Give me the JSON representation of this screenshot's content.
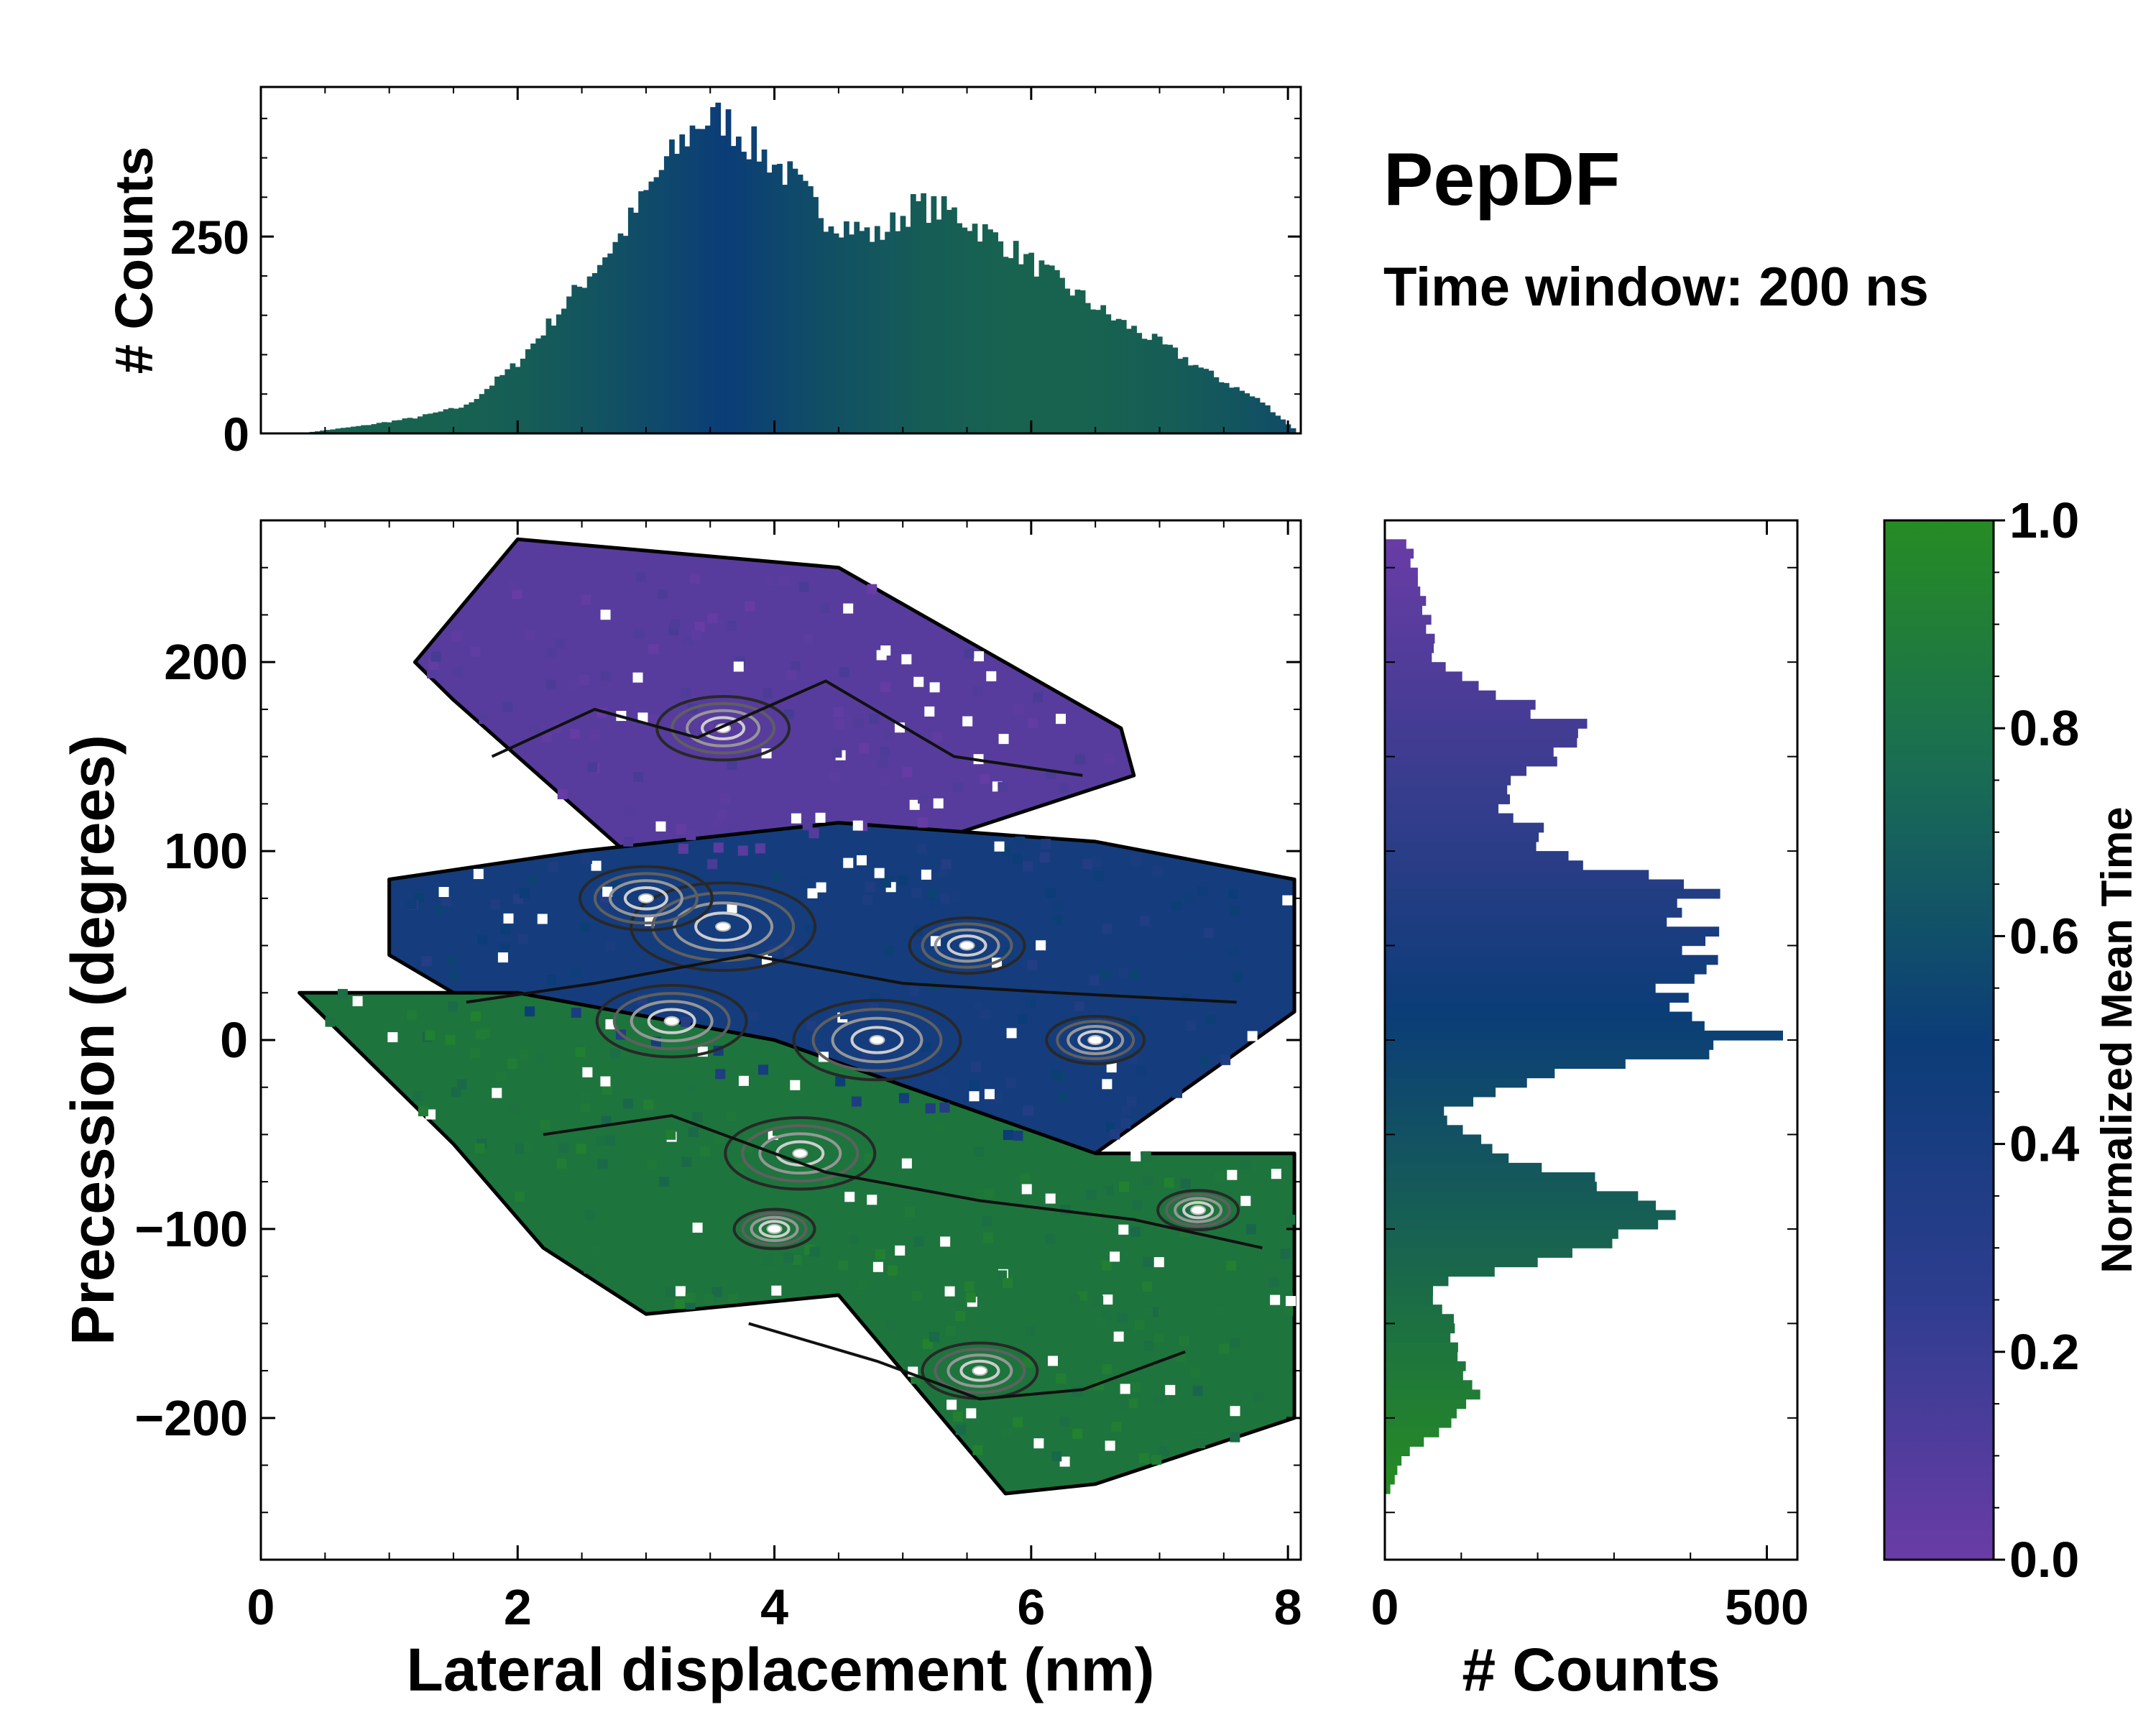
{
  "title": "PepDF",
  "subtitle": "Time window: 200 ns",
  "colors": {
    "low": "#6a3ca6",
    "mid": "#0b3d78",
    "high": "#268c24"
  },
  "chart_data": [
    {
      "id": "top-histogram",
      "type": "bar",
      "ylabel": "# Counts",
      "xlim": [
        0,
        8.1
      ],
      "ylim": [
        0,
        440
      ],
      "yticks": [
        "0",
        "250"
      ],
      "ytick_values": [
        0,
        250
      ],
      "bin_width": 0.04,
      "profile_x": [
        0.3,
        0.8,
        1.2,
        1.6,
        2.0,
        2.4,
        2.8,
        3.1,
        3.4,
        3.6,
        3.8,
        4.1,
        4.4,
        4.8,
        5.1,
        5.4,
        5.8,
        6.2,
        6.6,
        7.0,
        7.4,
        7.8,
        8.05
      ],
      "profile_y": [
        0,
        10,
        20,
        35,
        90,
        170,
        250,
        330,
        395,
        400,
        370,
        330,
        275,
        250,
        290,
        280,
        240,
        195,
        150,
        115,
        75,
        40,
        5
      ]
    },
    {
      "id": "main-density",
      "type": "heatmap",
      "xlabel": "Lateral displacement (nm)",
      "ylabel": "Precession (degrees)",
      "xlim": [
        0,
        8.1
      ],
      "ylim": [
        -275,
        275
      ],
      "xticks": [
        "0",
        "2",
        "4",
        "6",
        "8"
      ],
      "xtick_values": [
        0,
        2,
        4,
        6,
        8
      ],
      "yticks": [
        "−200",
        "−100",
        "0",
        "100",
        "200"
      ],
      "ytick_values": [
        -200,
        -100,
        0,
        100,
        200
      ],
      "colorbar_label": "Normalized Mean Time",
      "regions": [
        {
          "name": "purple-band",
          "x": [
            1.2,
            2.0,
            4.5,
            6.7,
            6.8,
            5.0,
            3.0,
            1.5
          ],
          "y": [
            200,
            265,
            250,
            165,
            140,
            100,
            90,
            180
          ],
          "value": 0.1
        },
        {
          "name": "blue-band",
          "x": [
            1.0,
            2.5,
            4.5,
            6.5,
            8.05,
            8.05,
            6.5,
            4.0,
            2.0,
            1.0
          ],
          "y": [
            85,
            100,
            115,
            105,
            85,
            15,
            -60,
            -25,
            5,
            45
          ],
          "value": 0.45
        },
        {
          "name": "green-band",
          "x": [
            0.3,
            2.0,
            4.0,
            6.5,
            8.05,
            8.05,
            6.5,
            5.8,
            4.5,
            3.0,
            2.2,
            1.5
          ],
          "y": [
            25,
            25,
            0,
            -60,
            -60,
            -200,
            -235,
            -240,
            -135,
            -145,
            -110,
            -55
          ],
          "value": 0.85
        }
      ]
    },
    {
      "id": "right-histogram",
      "type": "bar",
      "orientation": "horizontal",
      "xlabel": "# Counts",
      "xlim": [
        0,
        540
      ],
      "xticks": [
        "0",
        "500"
      ],
      "xtick_values": [
        0,
        500
      ],
      "ylim": [
        -275,
        275
      ],
      "bin_width": 5,
      "profile_y": [
        265,
        240,
        200,
        170,
        160,
        130,
        100,
        80,
        50,
        20,
        0,
        -20,
        -40,
        -60,
        -80,
        -100,
        -130,
        -160,
        -190,
        -220,
        -240
      ],
      "profile_x": [
        30,
        45,
        70,
        230,
        280,
        150,
        220,
        390,
        420,
        360,
        490,
        200,
        70,
        150,
        320,
        360,
        60,
        100,
        120,
        25,
        5
      ]
    },
    {
      "id": "colorbar",
      "type": "heatmap",
      "label": "Normalized Mean Time",
      "range": [
        0.0,
        1.0
      ],
      "ticks": [
        "0.0",
        "0.2",
        "0.4",
        "0.6",
        "0.8",
        "1.0"
      ],
      "tick_values": [
        0.0,
        0.2,
        0.4,
        0.6,
        0.8,
        1.0
      ]
    }
  ]
}
